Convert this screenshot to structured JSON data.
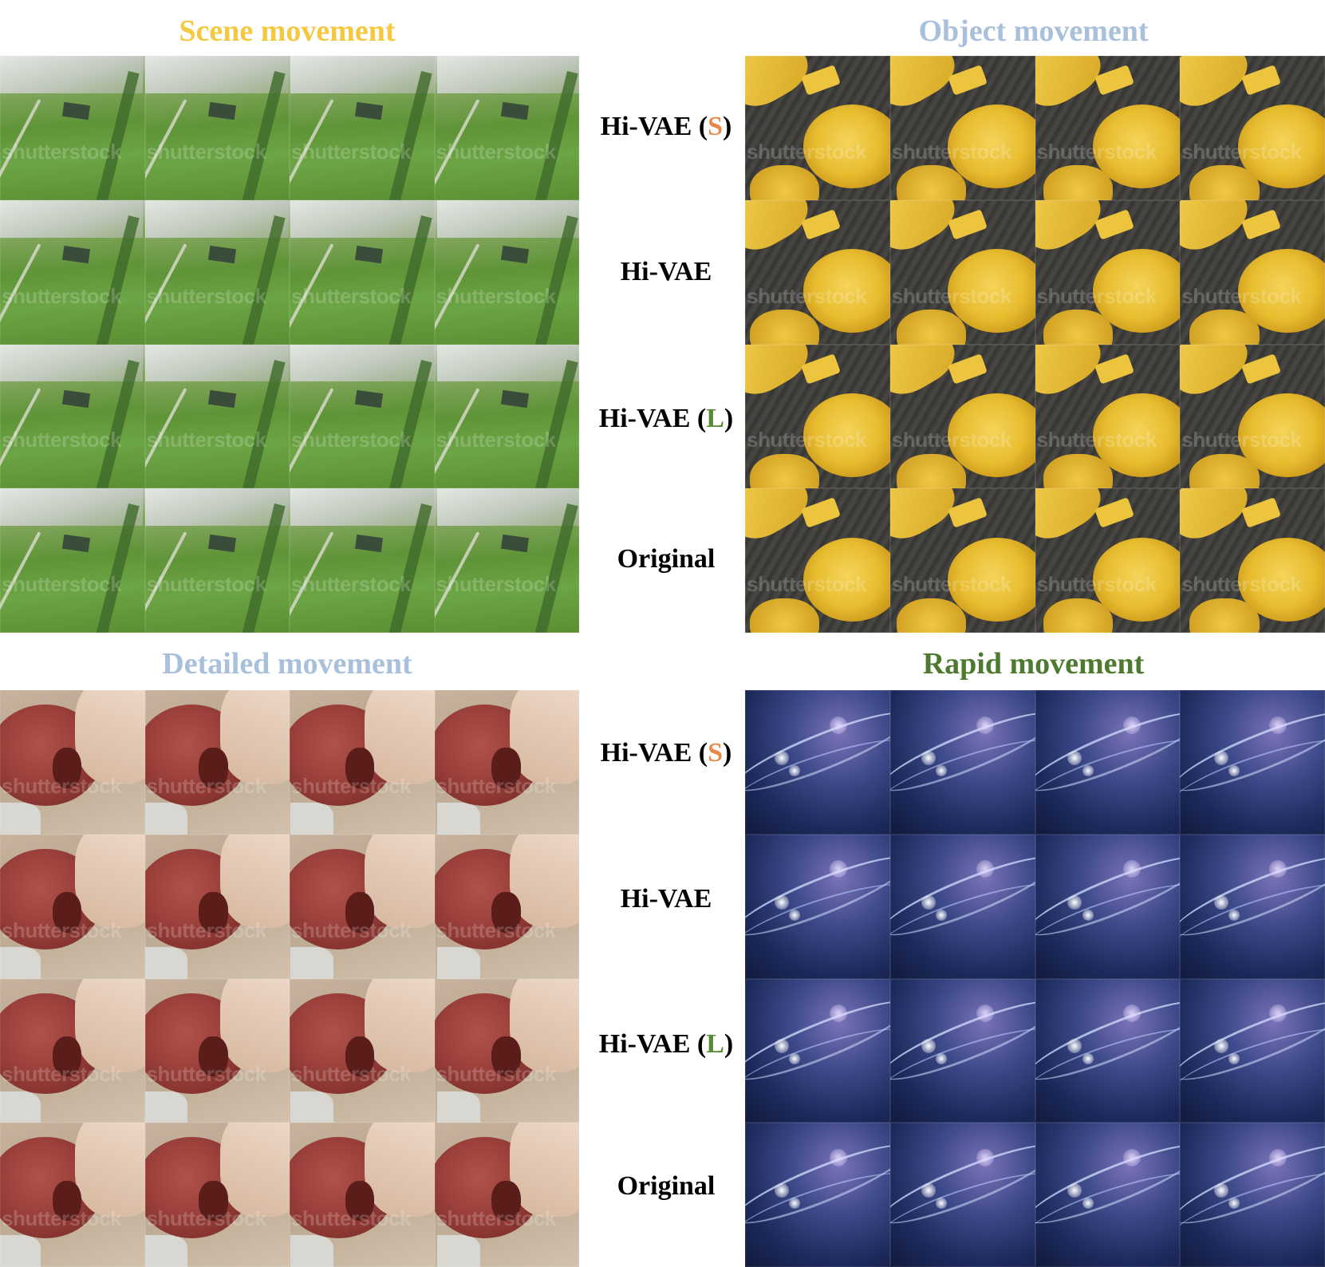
{
  "panels": {
    "scene": {
      "title": "Scene movement",
      "title_color": "#F5C842",
      "watermark": "shutterstock",
      "labels": [
        {
          "prefix": "Hi-VAE (",
          "letter": "S",
          "suffix": ")",
          "letter_color": "#E8894A"
        },
        {
          "prefix": "Hi-VAE",
          "letter": "",
          "suffix": "",
          "letter_color": ""
        },
        {
          "prefix": "Hi-VAE (",
          "letter": "L",
          "suffix": ")",
          "letter_color": "#5A8A33"
        },
        {
          "prefix": "Original",
          "letter": "",
          "suffix": "",
          "letter_color": ""
        }
      ]
    },
    "object": {
      "title": "Object movement",
      "title_color": "#A8C0DC",
      "watermark": "shutterstock"
    },
    "detailed": {
      "title": "Detailed movement",
      "title_color": "#A8C0DC",
      "watermark": "shutterstock",
      "labels": [
        {
          "prefix": "Hi-VAE (",
          "letter": "S",
          "suffix": ")",
          "letter_color": "#E8894A"
        },
        {
          "prefix": "Hi-VAE",
          "letter": "",
          "suffix": "",
          "letter_color": ""
        },
        {
          "prefix": "Hi-VAE (",
          "letter": "L",
          "suffix": ")",
          "letter_color": "#5A8A33"
        },
        {
          "prefix": "Original",
          "letter": "",
          "suffix": "",
          "letter_color": ""
        }
      ]
    },
    "rapid": {
      "title": "Rapid movement",
      "title_color": "#4E7A2F",
      "watermark": ""
    }
  }
}
